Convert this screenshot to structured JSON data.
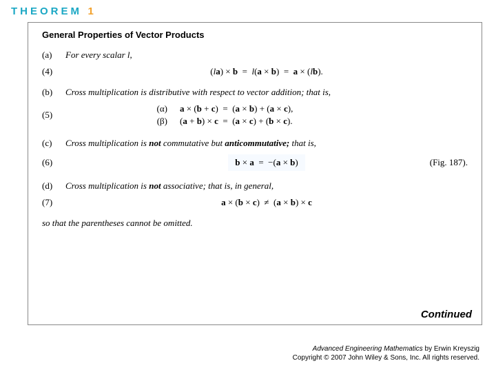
{
  "header": {
    "word": "THEOREM",
    "num": "1",
    "word_color": "#1aa7c4",
    "num_color": "#f2a12b",
    "fontsize": 15
  },
  "box": {
    "title": "General Properties of Vector Products",
    "items": {
      "a": {
        "label": "(a)",
        "text": "For every scalar l,"
      },
      "b": {
        "label": "(b)",
        "text": "Cross multiplication is distributive with respect to vector addition; that is,"
      },
      "c": {
        "label": "(c)",
        "pre": "Cross multiplication is ",
        "bold1": "not",
        "mid": " commutative but ",
        "bold2": "anticommutative;",
        "post": " that is,"
      },
      "d": {
        "label": "(d)",
        "pre": "Cross multiplication is ",
        "bold1": "not",
        "post": " associative; that is, in general,"
      }
    },
    "equations": {
      "eq4": {
        "num": "(4)",
        "text": "(la) × b = l(a × b) = a × (lb)."
      },
      "eq5": {
        "num": "(5)",
        "alpha": {
          "label": "(α)",
          "text": "a × (b + c)  =  (a × b) + (a × c),"
        },
        "beta": {
          "label": "(β)",
          "text": "(a + b) × c  =  (a × c) + (b × c)."
        }
      },
      "eq6": {
        "num": "(6)",
        "text": "b × a  =  −(a × b)",
        "ref": "(Fig. 187)."
      },
      "eq7": {
        "num": "(7)",
        "text": "a × (b × c)  ≠  (a × b) × c"
      }
    },
    "closing": "so that the parentheses cannot be omitted.",
    "continued": "Continued"
  },
  "credits": {
    "line1_pre": "Advanced Engineering Mathematics",
    "line1_post": " by Erwin Kreyszig",
    "line2": "Copyright © 2007 John Wiley & Sons, Inc.  All rights reserved."
  },
  "styling": {
    "page_bg": "#ffffff",
    "box_border": "#888888",
    "highlight_bg": "#f6faff",
    "body_fontsize": 13,
    "credits_fontsize": 10
  }
}
